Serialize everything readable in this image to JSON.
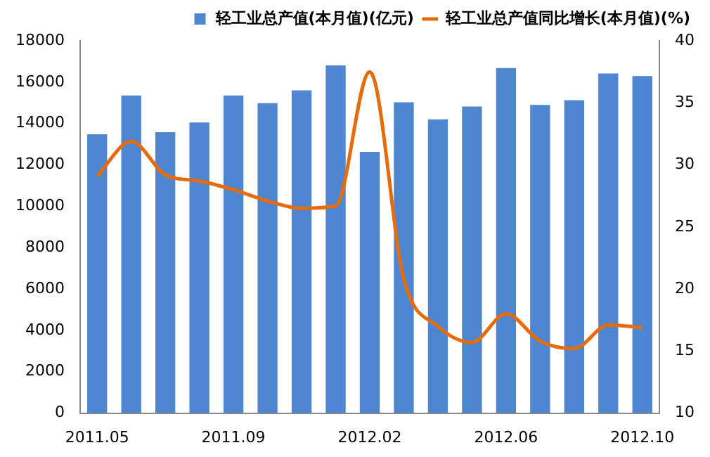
{
  "chart_data": {
    "type": "bar",
    "categories": [
      "2011.05",
      null,
      null,
      null,
      "2011.09",
      null,
      null,
      null,
      "2012.02",
      null,
      null,
      null,
      "2012.06",
      null,
      null,
      null,
      "2012.10"
    ],
    "series": [
      {
        "name": "轻工业总产值(本月值)(亿元)",
        "color": "#4f86d1",
        "values": [
          13480,
          15360,
          13580,
          14050,
          15360,
          14980,
          15600,
          16810,
          12630,
          15030,
          14200,
          14820,
          16680,
          14900,
          15130,
          16420,
          16290
        ]
      },
      {
        "name": "轻工业总产值同比增长(本月值)(%)",
        "type": "line",
        "axis": "y2",
        "color": "#e46c0a",
        "marker": "none",
        "values": [
          29.1,
          31.9,
          29.2,
          28.7,
          28.0,
          27.1,
          26.5,
          26.7,
          37.5,
          20.8,
          17.0,
          15.7,
          18.0,
          15.8,
          15.2,
          17.1,
          16.9
        ]
      }
    ],
    "ylim": [
      0,
      18000
    ],
    "yticks": [
      0,
      2000,
      4000,
      6000,
      8000,
      10000,
      12000,
      14000,
      16000,
      18000
    ],
    "y2lim": [
      10,
      40
    ],
    "y2ticks": [
      10,
      15,
      20,
      25,
      30,
      35,
      40
    ],
    "grid": false,
    "legend": "top right"
  }
}
